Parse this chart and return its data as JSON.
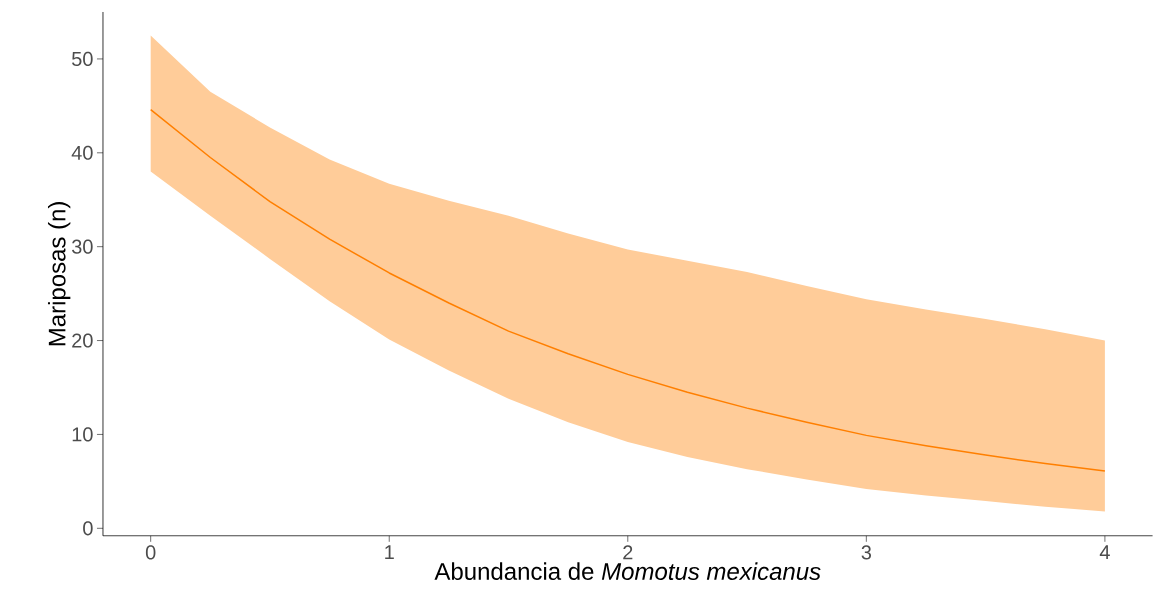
{
  "chart_data": {
    "type": "line",
    "xlabel": "Abundancia de *Momotus mexicanus*",
    "ylabel": "Mariposas (n)",
    "x": [
      0,
      0.25,
      0.5,
      0.75,
      1,
      1.25,
      1.5,
      1.75,
      2,
      2.25,
      2.5,
      2.75,
      3,
      3.25,
      3.5,
      3.75,
      4
    ],
    "series": [
      {
        "color": "#ff7f00",
        "values": [
          44.6,
          39.5,
          34.8,
          30.8,
          27.2,
          24.0,
          21.0,
          18.6,
          16.4,
          14.5,
          12.8,
          11.3,
          9.9,
          8.8,
          7.8,
          6.9,
          6.1
        ],
        "lower": [
          38.0,
          33.3,
          28.7,
          24.2,
          20.1,
          16.8,
          13.8,
          11.3,
          9.2,
          7.6,
          6.3,
          5.2,
          4.2,
          3.5,
          2.9,
          2.3,
          1.8
        ],
        "upper": [
          52.5,
          46.5,
          42.7,
          39.3,
          36.7,
          34.9,
          33.3,
          31.4,
          29.7,
          28.5,
          27.3,
          25.8,
          24.4,
          23.3,
          22.3,
          21.2,
          20.0
        ]
      }
    ],
    "xlim": [
      -0.2,
      4.2
    ],
    "ylim": [
      -0.8,
      55
    ],
    "xticks": [
      0,
      1,
      2,
      3,
      4
    ],
    "yticks": [
      0,
      10,
      20,
      30,
      40,
      50
    ],
    "grid": false
  }
}
